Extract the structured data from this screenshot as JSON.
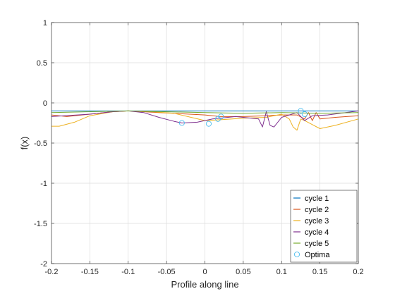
{
  "chart_data": {
    "type": "line",
    "title": "",
    "xlabel": "Profile along line",
    "ylabel": "f(x)",
    "xlim": [
      -0.2,
      0.2
    ],
    "ylim": [
      -2,
      1
    ],
    "grid": true,
    "legend_position": "bottom-right",
    "xticks": [
      -0.2,
      -0.15,
      -0.1,
      -0.05,
      0,
      0.05,
      0.1,
      0.15,
      0.2
    ],
    "xtick_labels": [
      "-0.2",
      "-0.15",
      "-0.1",
      "-0.05",
      "0",
      "0.05",
      "0.1",
      "0.15",
      "0.2"
    ],
    "yticks": [
      -2,
      -1.5,
      -1,
      -0.5,
      0,
      0.5,
      1
    ],
    "ytick_labels": [
      "-2",
      "-1.5",
      "-1",
      "-0.5",
      "0",
      "0.5",
      "1"
    ],
    "series": [
      {
        "name": "cycle 1",
        "color": "#0072BD",
        "x": [
          -0.2,
          -0.1,
          0,
          0.1,
          0.2
        ],
        "y": [
          -0.1,
          -0.1,
          -0.1,
          -0.1,
          -0.1
        ]
      },
      {
        "name": "cycle 2",
        "color": "#D95319",
        "x": [
          -0.2,
          -0.18,
          -0.15,
          -0.12,
          -0.1,
          -0.06,
          -0.02,
          0.0,
          0.02,
          0.05,
          0.08,
          0.1,
          0.12,
          0.13,
          0.135,
          0.14,
          0.145,
          0.15,
          0.17,
          0.2
        ],
        "y": [
          -0.15,
          -0.17,
          -0.14,
          -0.11,
          -0.1,
          -0.12,
          -0.14,
          -0.15,
          -0.17,
          -0.17,
          -0.16,
          -0.15,
          -0.15,
          -0.2,
          -0.12,
          -0.22,
          -0.12,
          -0.2,
          -0.18,
          -0.16
        ]
      },
      {
        "name": "cycle 3",
        "color": "#EDB120",
        "x": [
          -0.2,
          -0.19,
          -0.17,
          -0.15,
          -0.12,
          -0.1,
          -0.07,
          -0.04,
          0.0,
          0.02,
          0.05,
          0.08,
          0.1,
          0.11,
          0.115,
          0.12,
          0.125,
          0.13,
          0.14,
          0.15,
          0.17,
          0.2
        ],
        "y": [
          -0.29,
          -0.29,
          -0.24,
          -0.16,
          -0.11,
          -0.1,
          -0.11,
          -0.13,
          -0.22,
          -0.21,
          -0.19,
          -0.18,
          -0.14,
          -0.2,
          -0.3,
          -0.34,
          -0.2,
          -0.22,
          -0.27,
          -0.32,
          -0.28,
          -0.2
        ]
      },
      {
        "name": "cycle 4",
        "color": "#7E2F8E",
        "x": [
          -0.2,
          -0.15,
          -0.12,
          -0.1,
          -0.08,
          -0.06,
          -0.04,
          -0.03,
          -0.01,
          0.01,
          0.04,
          0.07,
          0.075,
          0.08,
          0.085,
          0.09,
          0.1,
          0.12,
          0.13,
          0.14,
          0.16,
          0.2
        ],
        "y": [
          -0.17,
          -0.14,
          -0.11,
          -0.1,
          -0.12,
          -0.18,
          -0.23,
          -0.25,
          -0.24,
          -0.2,
          -0.17,
          -0.2,
          -0.3,
          -0.11,
          -0.28,
          -0.3,
          -0.18,
          -0.12,
          -0.22,
          -0.16,
          -0.15,
          -0.1
        ]
      },
      {
        "name": "cycle 5",
        "color": "#77AC30",
        "x": [
          -0.2,
          -0.1,
          0.0,
          0.05,
          0.1,
          0.15,
          0.2
        ],
        "y": [
          -0.12,
          -0.1,
          -0.12,
          -0.13,
          -0.12,
          -0.13,
          -0.12
        ]
      }
    ],
    "optima": {
      "name": "Optima",
      "color": "#4DBEEE",
      "x": [
        -0.03,
        0.005,
        0.017,
        0.021,
        0.125,
        0.13
      ],
      "y": [
        -0.25,
        -0.26,
        -0.2,
        -0.17,
        -0.1,
        -0.14
      ]
    }
  }
}
